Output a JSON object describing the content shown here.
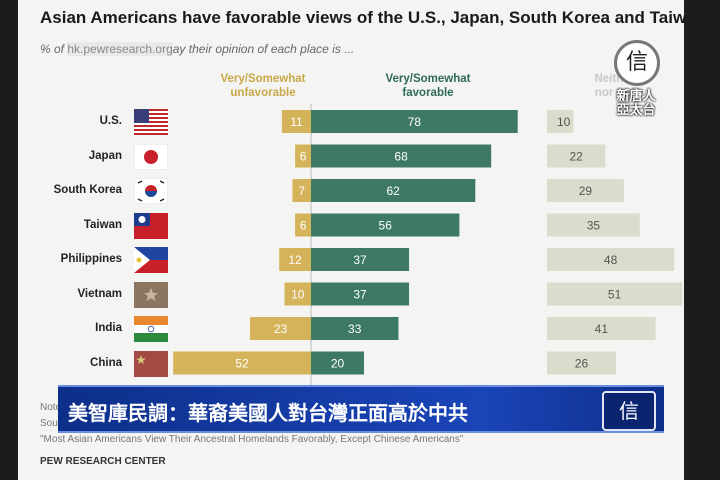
{
  "header": {
    "title": "Asian Americans have favorable views of the U.S., Japan, South Korea and Taiwan",
    "subtitle_prefix": "% of ",
    "subtitle_watermark": "hk.pewresearch.org",
    "subtitle_suffix": "ay their opinion of each place is ..."
  },
  "column_headers": {
    "unfavorable": [
      "Very/Somewhat",
      "unfavorable"
    ],
    "favorable": [
      "Very/Somewhat",
      "favorable"
    ],
    "neither": [
      "Neither fa",
      "nor unfav"
    ]
  },
  "colors": {
    "unfavorable": "#d5b35a",
    "favorable": "#3e7a63",
    "neither": "#dcdccd"
  },
  "flag_icons": [
    "us-flag-icon",
    "japan-flag-icon",
    "south-korea-flag-icon",
    "taiwan-flag-icon",
    "philippines-flag-icon",
    "vietnam-flag-icon",
    "india-flag-icon",
    "china-flag-icon"
  ],
  "chart_data": {
    "type": "bar",
    "orientation": "horizontal-diverging",
    "title": "Asian Americans have favorable views of the U.S., Japan, South Korea and Taiwan",
    "categories": [
      "U.S.",
      "Japan",
      "South Korea",
      "Taiwan",
      "Philippines",
      "Vietnam",
      "India",
      "China"
    ],
    "series": [
      {
        "name": "Very/Somewhat unfavorable",
        "values": [
          11,
          6,
          7,
          6,
          12,
          10,
          23,
          52
        ]
      },
      {
        "name": "Very/Somewhat favorable",
        "values": [
          78,
          68,
          62,
          56,
          37,
          37,
          33,
          20
        ]
      },
      {
        "name": "Neither favorable nor unfavorable",
        "values": [
          10,
          22,
          29,
          35,
          48,
          51,
          41,
          26
        ]
      }
    ]
  },
  "footer": {
    "note1": "Note",
    "note2": "Sou",
    "note3": "\"Most Asian Americans View Their Ancestral Homelands Favorably, Except Chinese Americans\"",
    "source": "PEW RESEARCH CENTER"
  },
  "overlay": {
    "caption": "美智庫民調：華裔美國人對台灣正面高於中共",
    "logo_glyph": "信",
    "corner_glyph": "信",
    "corner_text_line1": "新唐人",
    "corner_text_line2": "亞太台"
  }
}
